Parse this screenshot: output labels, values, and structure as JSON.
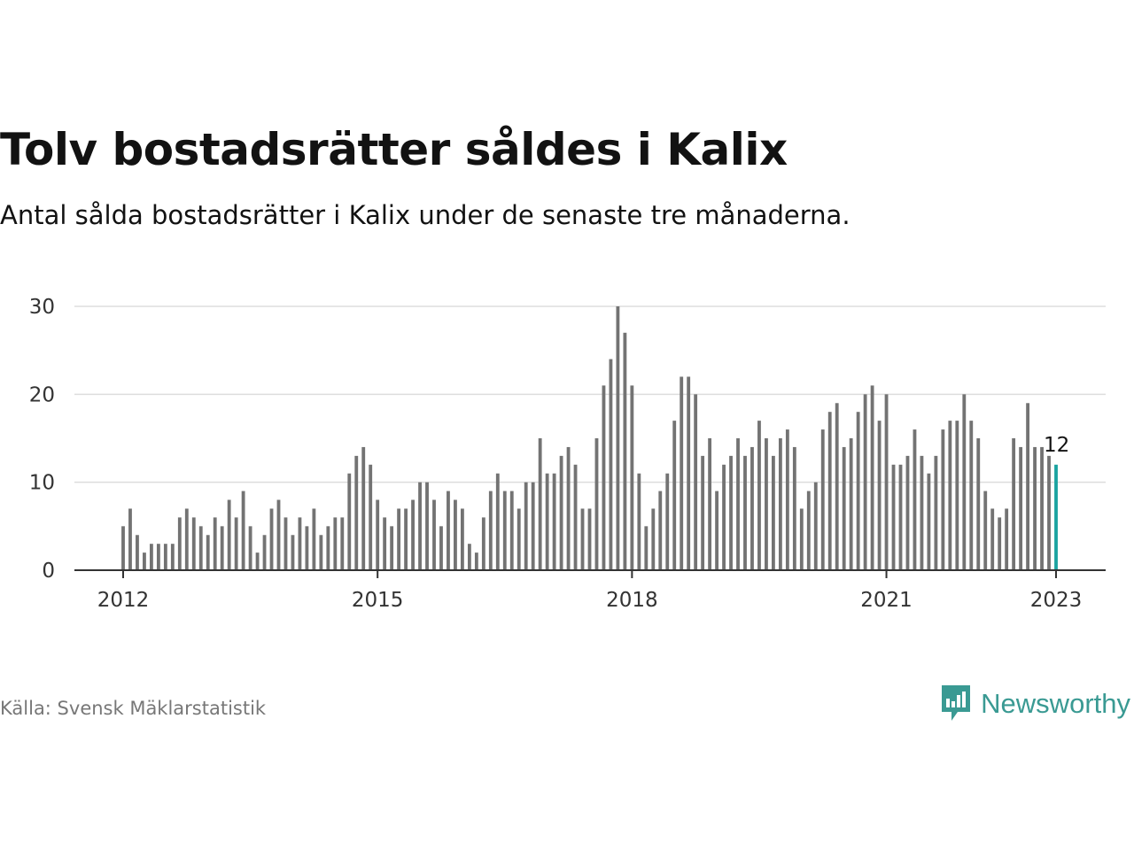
{
  "title": "Tolv bostadsrätter såldes i Kalix",
  "subtitle": "Antal sålda bostadsrätter i Kalix under de senaste tre månaderna.",
  "source": "Källa: Svensk Mäklarstatistik",
  "brand": {
    "name": "Newsworthy",
    "color": "#3a9a93",
    "icon": "newsworthy-logo-icon"
  },
  "colors": {
    "bar": "#737373",
    "highlight": "#1aa3a0",
    "grid": "#dddddd",
    "axis": "#333333"
  },
  "chart_data": {
    "type": "bar",
    "x_start": "2012-01",
    "x_end": "2023-01",
    "values": [
      5,
      7,
      4,
      2,
      3,
      3,
      3,
      3,
      6,
      7,
      6,
      5,
      4,
      6,
      5,
      8,
      6,
      9,
      5,
      2,
      4,
      7,
      8,
      6,
      4,
      6,
      5,
      7,
      4,
      5,
      6,
      6,
      11,
      13,
      14,
      12,
      8,
      6,
      5,
      7,
      7,
      8,
      10,
      10,
      8,
      5,
      9,
      8,
      7,
      3,
      2,
      6,
      9,
      11,
      9,
      9,
      7,
      10,
      10,
      15,
      11,
      11,
      13,
      14,
      12,
      7,
      7,
      15,
      21,
      24,
      30,
      27,
      21,
      11,
      5,
      7,
      9,
      11,
      17,
      22,
      22,
      20,
      13,
      15,
      9,
      12,
      13,
      15,
      13,
      14,
      17,
      15,
      13,
      15,
      16,
      14,
      7,
      9,
      10,
      16,
      18,
      19,
      14,
      15,
      18,
      20,
      21,
      17,
      20,
      12,
      12,
      13,
      16,
      13,
      11,
      13,
      16,
      17,
      17,
      20,
      17,
      15,
      9,
      7,
      6,
      7,
      15,
      14,
      19,
      14,
      14,
      13,
      12
    ],
    "highlight_last": true,
    "last_label": "12",
    "x_ticks": [
      "2012",
      "2015",
      "2018",
      "2021",
      "2023"
    ],
    "y_ticks": [
      "0",
      "10",
      "20",
      "30"
    ],
    "ylim": [
      0,
      30
    ],
    "xlabel": "",
    "ylabel": "",
    "grid": true,
    "legend": "none"
  }
}
